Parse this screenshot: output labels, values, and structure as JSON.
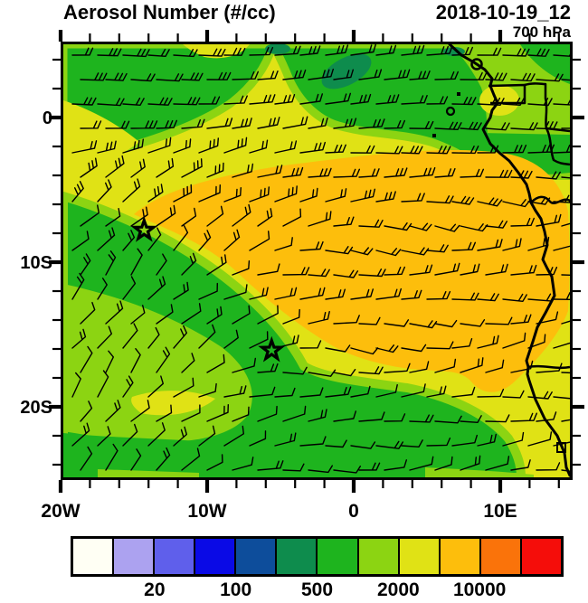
{
  "header": {
    "title": "Aerosol Number (#/cc)",
    "date": "2018-10-19_12",
    "level": "700 hPa"
  },
  "colors": {
    "frame": "#000000",
    "barb": "#000000",
    "coast": "#000000",
    "white": "#fffff4",
    "lavender": "#aca2f0",
    "violet": "#5f5feb",
    "blue": "#0a0ae6",
    "darkblue": "#0d4d9b",
    "darkgreen": "#0e8c4d",
    "green": "#1eb41e",
    "yellowgreen": "#8cd412",
    "yellow": "#e0e215",
    "amber": "#fdbe0c",
    "orange": "#fa730a",
    "red": "#f50d0a"
  },
  "chart_data": {
    "type": "heatmap",
    "title": "Aerosol Number (#/cc)",
    "valid_time": "2018-10-19_12",
    "level": "700 hPa",
    "region": "tropical/south-east Atlantic and west-central Africa",
    "lon_range_deg": [
      -20,
      14.8
    ],
    "lat_range_deg": [
      -25,
      5
    ],
    "x_ticks": {
      "major": [
        {
          "label": "20W",
          "lon": -20
        },
        {
          "label": "10W",
          "lon": -10
        },
        {
          "label": "0",
          "lon": 0
        },
        {
          "label": "10E",
          "lon": 10
        }
      ],
      "minor_lons": [
        -18,
        -16,
        -14,
        -12,
        -8,
        -6,
        -4,
        -2,
        2,
        4,
        6,
        8,
        12,
        14
      ]
    },
    "y_ticks": {
      "major": [
        {
          "label": "0",
          "lat": 0
        },
        {
          "label": "10S",
          "lat": -10
        },
        {
          "label": "20S",
          "lat": -20
        }
      ],
      "minor_lats": [
        4,
        2,
        -2,
        -4,
        -6,
        -8,
        -12,
        -14,
        -16,
        -18,
        -22,
        -24
      ]
    },
    "colorbar": {
      "units": "#/cc",
      "boundary_values": [
        10,
        20,
        50,
        100,
        200,
        500,
        1000,
        2000,
        5000,
        10000,
        20000
      ],
      "labeled_values": [
        "20",
        "100",
        "500",
        "2000",
        "10000"
      ],
      "labeled_boundary_indices": [
        2,
        4,
        6,
        8,
        10
      ],
      "color_keys": [
        "white",
        "lavender",
        "violet",
        "blue",
        "darkblue",
        "darkgreen",
        "green",
        "yellowgreen",
        "yellow",
        "amber",
        "orange",
        "red"
      ]
    },
    "fill_regions_summary": [
      {
        "color": "amber",
        "where": "large 2000-10000 #/cc tongue centered near 8-15S stretching from ~12W to the Angolan coast"
      },
      {
        "color": "yellow",
        "where": "band surrounding the amber tongue and most land areas"
      },
      {
        "color": "green",
        "where": "northern band along 0-5N and large southwest/southern Atlantic area"
      },
      {
        "color": "darkgreen",
        "where": "small low-concentration patches near the top center and top right"
      },
      {
        "color": "yellowgreen",
        "where": "transition strips between green and yellow, lower-left quadrant"
      }
    ],
    "markers": [
      {
        "shape": "star",
        "lon": -14.3,
        "lat": -7.8
      },
      {
        "shape": "star",
        "lon": -5.6,
        "lat": -16.1
      }
    ],
    "wind": {
      "style": "barbs",
      "spacing_px": 28,
      "pattern": "easterly flow north of ~5S, veering to NE-erly in the southwest quadrant, light variable winds along the southern edge"
    }
  }
}
